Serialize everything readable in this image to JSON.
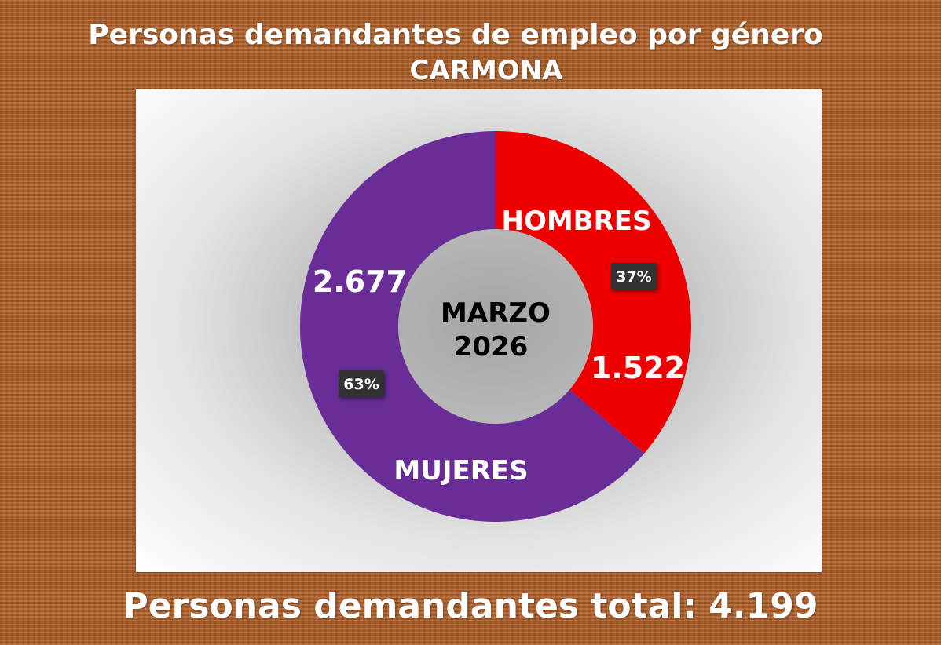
{
  "title_line1": "Personas demandantes de empleo por género",
  "title_line2": "CARMONA",
  "center_label_line1": "MARZO",
  "center_label_line2": "2026",
  "footer_text": "Personas demandantes total: 4.199",
  "colors": {
    "hombres": "#ee0000",
    "mujeres": "#6a2d98",
    "pct_badge": "#333333"
  },
  "chart_data": {
    "type": "pie",
    "categories": [
      "HOMBRES",
      "MUJERES"
    ],
    "values": [
      1522,
      2677
    ],
    "value_labels": [
      "1.522",
      "2.677"
    ],
    "percent_labels": [
      "37%",
      "63%"
    ]
  }
}
